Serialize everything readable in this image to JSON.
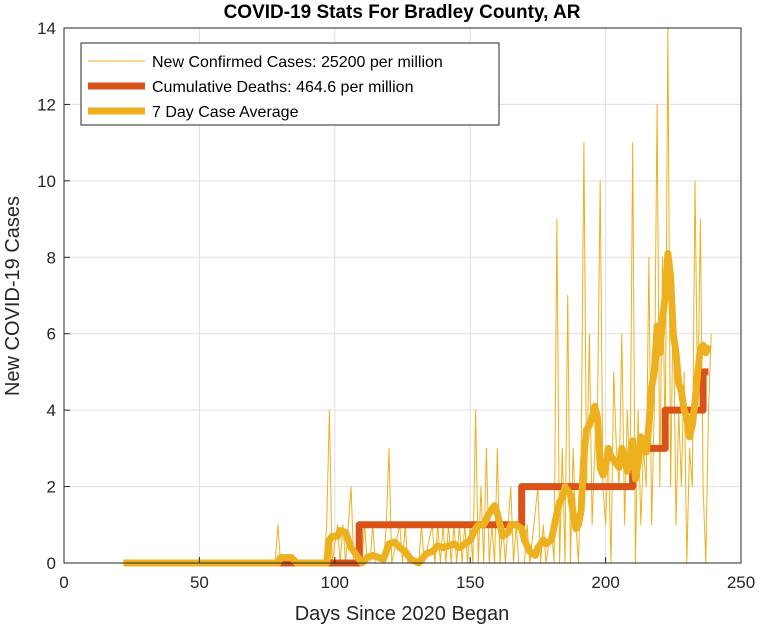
{
  "chart_data": {
    "type": "line",
    "title": "COVID-19 Stats For Bradley County, AR",
    "xlabel": "Days Since 2020 Began",
    "ylabel": "New COVID-19 Cases",
    "xlim": [
      0,
      250
    ],
    "ylim": [
      0,
      14
    ],
    "xticks": [
      0,
      50,
      100,
      150,
      200,
      250
    ],
    "yticks": [
      0,
      2,
      4,
      6,
      8,
      10,
      12,
      14
    ],
    "grid": true,
    "legend_position": "top-left",
    "series": [
      {
        "name": "New Confirmed Cases: 25200 per million",
        "color": "#EDB120",
        "style": "thin",
        "points": [
          [
            22,
            0
          ],
          [
            78,
            0
          ],
          [
            79,
            1
          ],
          [
            80,
            0
          ],
          [
            96,
            0
          ],
          [
            97,
            1
          ],
          [
            98,
            4
          ],
          [
            99,
            0
          ],
          [
            101,
            1
          ],
          [
            102,
            0
          ],
          [
            103,
            1
          ],
          [
            104,
            0
          ],
          [
            106,
            2
          ],
          [
            107,
            0
          ],
          [
            110,
            0
          ],
          [
            111,
            1
          ],
          [
            112,
            0
          ],
          [
            113,
            0
          ],
          [
            114,
            1
          ],
          [
            115,
            0
          ],
          [
            118,
            0
          ],
          [
            119,
            1
          ],
          [
            120,
            3
          ],
          [
            121,
            0
          ],
          [
            124,
            1
          ],
          [
            125,
            0
          ],
          [
            126,
            1
          ],
          [
            127,
            0
          ],
          [
            131,
            0
          ],
          [
            132,
            1
          ],
          [
            133,
            0
          ],
          [
            136,
            1
          ],
          [
            137,
            0
          ],
          [
            138,
            1
          ],
          [
            139,
            0
          ],
          [
            140,
            1
          ],
          [
            141,
            0
          ],
          [
            142,
            1
          ],
          [
            143,
            0
          ],
          [
            144,
            1
          ],
          [
            145,
            0
          ],
          [
            146,
            1
          ],
          [
            147,
            0
          ],
          [
            148,
            1
          ],
          [
            149,
            0
          ],
          [
            150,
            1
          ],
          [
            151,
            0
          ],
          [
            152,
            4
          ],
          [
            153,
            0
          ],
          [
            154,
            2
          ],
          [
            155,
            0
          ],
          [
            156,
            3
          ],
          [
            157,
            0
          ],
          [
            158,
            1
          ],
          [
            159,
            0
          ],
          [
            160,
            3
          ],
          [
            161,
            0
          ],
          [
            162,
            1
          ],
          [
            163,
            0
          ],
          [
            165,
            2
          ],
          [
            166,
            0
          ],
          [
            167,
            1
          ],
          [
            168,
            0
          ],
          [
            170,
            0
          ],
          [
            171,
            1
          ],
          [
            172,
            0
          ],
          [
            175,
            2
          ],
          [
            176,
            0
          ],
          [
            177,
            1
          ],
          [
            178,
            0
          ],
          [
            180,
            1
          ],
          [
            181,
            0
          ],
          [
            182,
            9
          ],
          [
            183,
            0
          ],
          [
            184,
            3
          ],
          [
            185,
            0
          ],
          [
            186,
            7
          ],
          [
            187,
            0
          ],
          [
            188,
            3
          ],
          [
            189,
            1
          ],
          [
            190,
            0
          ],
          [
            191,
            3
          ],
          [
            192,
            11
          ],
          [
            193,
            2
          ],
          [
            194,
            6
          ],
          [
            195,
            1
          ],
          [
            196,
            3
          ],
          [
            197,
            4
          ],
          [
            198,
            10
          ],
          [
            199,
            2
          ],
          [
            200,
            1
          ],
          [
            201,
            3
          ],
          [
            202,
            0
          ],
          [
            203,
            5
          ],
          [
            204,
            3
          ],
          [
            205,
            2
          ],
          [
            206,
            6
          ],
          [
            207,
            1
          ],
          [
            208,
            4
          ],
          [
            209,
            2
          ],
          [
            210,
            11
          ],
          [
            211,
            0
          ],
          [
            212,
            4
          ],
          [
            213,
            1
          ],
          [
            214,
            3
          ],
          [
            215,
            2
          ],
          [
            216,
            8
          ],
          [
            217,
            1
          ],
          [
            218,
            4
          ],
          [
            219,
            12
          ],
          [
            220,
            2
          ],
          [
            221,
            8
          ],
          [
            222,
            3
          ],
          [
            223,
            14
          ],
          [
            224,
            2
          ],
          [
            225,
            7
          ],
          [
            226,
            1
          ],
          [
            227,
            4
          ],
          [
            228,
            2
          ],
          [
            229,
            5
          ],
          [
            230,
            0
          ],
          [
            231,
            3
          ],
          [
            232,
            2
          ],
          [
            233,
            10
          ],
          [
            234,
            4
          ],
          [
            235,
            9
          ],
          [
            236,
            2
          ],
          [
            237,
            0
          ],
          [
            238,
            4
          ],
          [
            239,
            6
          ]
        ]
      },
      {
        "name": "Cumulative Deaths: 464.6 per million",
        "color": "#D95319",
        "style": "thick",
        "points": [
          [
            22,
            0
          ],
          [
            109,
            0
          ],
          [
            109,
            1
          ],
          [
            169,
            1
          ],
          [
            169,
            2
          ],
          [
            210,
            2
          ],
          [
            210,
            3
          ],
          [
            222,
            3
          ],
          [
            222,
            4
          ],
          [
            236,
            4
          ],
          [
            236,
            5
          ],
          [
            238,
            5
          ]
        ]
      },
      {
        "name": "7 Day Case Average",
        "color": "#EDB120",
        "style": "thick",
        "points": [
          [
            22,
            0
          ],
          [
            79,
            0
          ],
          [
            80,
            0.14
          ],
          [
            84,
            0.14
          ],
          [
            86,
            0
          ],
          [
            97,
            0
          ],
          [
            98,
            0.6
          ],
          [
            99,
            0.7
          ],
          [
            101,
            0.7
          ],
          [
            102,
            0.85
          ],
          [
            104,
            0.8
          ],
          [
            106,
            0.4
          ],
          [
            107,
            0.3
          ],
          [
            110,
            0
          ],
          [
            112,
            0.15
          ],
          [
            114,
            0.2
          ],
          [
            116,
            0.15
          ],
          [
            118,
            0.1
          ],
          [
            119,
            0.3
          ],
          [
            120,
            0.5
          ],
          [
            122,
            0.55
          ],
          [
            124,
            0.4
          ],
          [
            126,
            0.3
          ],
          [
            128,
            0.1
          ],
          [
            131,
            0
          ],
          [
            132,
            0.1
          ],
          [
            134,
            0.25
          ],
          [
            136,
            0.3
          ],
          [
            138,
            0.45
          ],
          [
            140,
            0.4
          ],
          [
            142,
            0.45
          ],
          [
            144,
            0.5
          ],
          [
            146,
            0.4
          ],
          [
            148,
            0.5
          ],
          [
            150,
            0.6
          ],
          [
            152,
            0.9
          ],
          [
            153,
            1.0
          ],
          [
            155,
            1.0
          ],
          [
            157,
            1.3
          ],
          [
            159,
            1.5
          ],
          [
            160,
            1.3
          ],
          [
            162,
            0.7
          ],
          [
            164,
            0.8
          ],
          [
            165,
            1.0
          ],
          [
            167,
            1.0
          ],
          [
            169,
            0.9
          ],
          [
            170,
            0.6
          ],
          [
            172,
            0.3
          ],
          [
            174,
            0.2
          ],
          [
            175,
            0.4
          ],
          [
            177,
            0.6
          ],
          [
            178,
            0.5
          ],
          [
            180,
            0.6
          ],
          [
            182,
            1.3
          ],
          [
            183,
            1.6
          ],
          [
            184,
            1.7
          ],
          [
            185,
            2.0
          ],
          [
            186,
            1.9
          ],
          [
            187,
            1.8
          ],
          [
            188,
            1.3
          ],
          [
            189,
            0.9
          ],
          [
            190,
            1.0
          ],
          [
            191,
            1.4
          ],
          [
            192,
            2.8
          ],
          [
            193,
            3.5
          ],
          [
            194,
            3.6
          ],
          [
            195,
            3.8
          ],
          [
            196,
            4.1
          ],
          [
            197,
            3.8
          ],
          [
            198,
            2.5
          ],
          [
            199,
            2.3
          ],
          [
            200,
            2.5
          ],
          [
            201,
            3.0
          ],
          [
            202,
            2.8
          ],
          [
            203,
            2.7
          ],
          [
            204,
            2.6
          ],
          [
            205,
            2.5
          ],
          [
            206,
            3.0
          ],
          [
            207,
            2.8
          ],
          [
            208,
            2.4
          ],
          [
            209,
            2.8
          ],
          [
            210,
            3.2
          ],
          [
            211,
            2.2
          ],
          [
            212,
            2.6
          ],
          [
            213,
            3.3
          ],
          [
            214,
            3.0
          ],
          [
            215,
            2.9
          ],
          [
            216,
            3.6
          ],
          [
            217,
            4.6
          ],
          [
            218,
            5.0
          ],
          [
            219,
            6.2
          ],
          [
            220,
            5.5
          ],
          [
            221,
            6.4
          ],
          [
            222,
            7.0
          ],
          [
            223,
            8.1
          ],
          [
            224,
            7.5
          ],
          [
            225,
            6.0
          ],
          [
            226,
            5.5
          ],
          [
            227,
            4.7
          ],
          [
            228,
            4.5
          ],
          [
            229,
            4.0
          ],
          [
            230,
            3.8
          ],
          [
            231,
            3.3
          ],
          [
            232,
            3.6
          ],
          [
            233,
            4.2
          ],
          [
            234,
            5.0
          ],
          [
            235,
            5.6
          ],
          [
            236,
            5.7
          ],
          [
            237,
            5.5
          ],
          [
            238,
            5.7
          ]
        ]
      }
    ]
  }
}
